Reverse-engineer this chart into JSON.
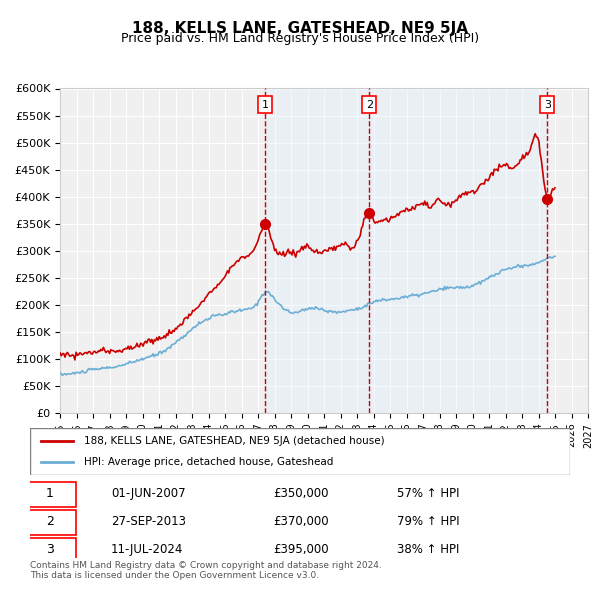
{
  "title": "188, KELLS LANE, GATESHEAD, NE9 5JA",
  "subtitle": "Price paid vs. HM Land Registry's House Price Index (HPI)",
  "hpi_color": "#6baed6",
  "price_color": "#cc0000",
  "sale_marker_color": "#cc0000",
  "background_color": "#ffffff",
  "plot_bg_color": "#f0f0f0",
  "shaded_region_color": "#ddeeff",
  "grid_color": "#ffffff",
  "ylabel": "£",
  "ylim": [
    0,
    600000
  ],
  "yticks": [
    0,
    50000,
    100000,
    150000,
    200000,
    250000,
    300000,
    350000,
    400000,
    450000,
    500000,
    550000,
    600000
  ],
  "ytick_labels": [
    "£0",
    "£50K",
    "£100K",
    "£150K",
    "£200K",
    "£250K",
    "£300K",
    "£350K",
    "£400K",
    "£450K",
    "£500K",
    "£550K",
    "£600K"
  ],
  "xlim_start": 1995.0,
  "xlim_end": 2027.0,
  "xticks": [
    1995,
    1996,
    1997,
    1998,
    1999,
    2000,
    2001,
    2002,
    2003,
    2004,
    2005,
    2006,
    2007,
    2008,
    2009,
    2010,
    2011,
    2012,
    2013,
    2014,
    2015,
    2016,
    2017,
    2018,
    2019,
    2020,
    2021,
    2022,
    2023,
    2024,
    2025,
    2026,
    2027
  ],
  "sale_dates": [
    2007.42,
    2013.74,
    2024.53
  ],
  "sale_prices": [
    350000,
    370000,
    395000
  ],
  "sale_labels": [
    "1",
    "2",
    "3"
  ],
  "sale_info": [
    {
      "label": "1",
      "date": "01-JUN-2007",
      "price": "£350,000",
      "hpi": "57% ↑ HPI"
    },
    {
      "label": "2",
      "date": "27-SEP-2013",
      "price": "£370,000",
      "hpi": "79% ↑ HPI"
    },
    {
      "label": "3",
      "date": "11-JUL-2024",
      "price": "£395,000",
      "hpi": "38% ↑ HPI"
    }
  ],
  "legend_line1": "188, KELLS LANE, GATESHEAD, NE9 5JA (detached house)",
  "legend_line2": "HPI: Average price, detached house, Gateshead",
  "footer1": "Contains HM Land Registry data © Crown copyright and database right 2024.",
  "footer2": "This data is licensed under the Open Government Licence v3.0."
}
